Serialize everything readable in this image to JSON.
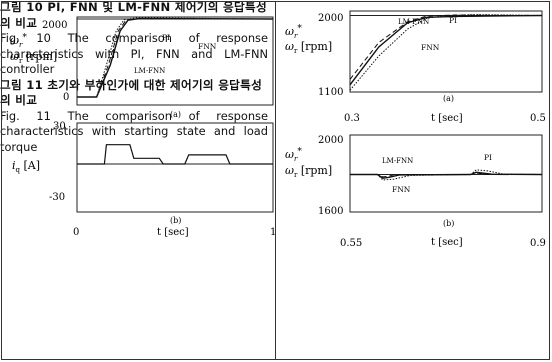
{
  "figure10": {
    "chart_data": [
      {
        "type": "line",
        "panel": "(a)",
        "ylabel_star": "ω_r*",
        "ylabel": "ω_r [rpm]",
        "yticks": [
          "2000",
          "0"
        ],
        "ylim": [
          0,
          2000
        ],
        "xlim": [
          0,
          1
        ],
        "series": [
          {
            "name": "PI",
            "points": [
              [
                0,
                0
              ],
              [
                0.1,
                0
              ],
              [
                0.15,
                800
              ],
              [
                0.2,
                1650
              ],
              [
                0.24,
                1930
              ],
              [
                0.3,
                1980
              ],
              [
                1,
                1950
              ]
            ]
          },
          {
            "name": "FNN",
            "points": [
              [
                0,
                0
              ],
              [
                0.1,
                0
              ],
              [
                0.17,
                800
              ],
              [
                0.22,
                1650
              ],
              [
                0.26,
                1920
              ],
              [
                0.32,
                1960
              ],
              [
                1,
                1950
              ]
            ]
          },
          {
            "name": "LM-FNN",
            "points": [
              [
                0,
                0
              ],
              [
                0.1,
                0
              ],
              [
                0.16,
                800
              ],
              [
                0.21,
                1650
              ],
              [
                0.25,
                1920
              ],
              [
                0.31,
                1960
              ],
              [
                1,
                1950
              ]
            ]
          }
        ],
        "labels": {
          "pi": "PI",
          "fnn": "FNN",
          "lmfnn": "LM-FNN"
        },
        "tag": "(a)"
      },
      {
        "type": "line",
        "panel": "(b)",
        "ylabel": "i_q [A]",
        "yticks": [
          "30",
          "-30"
        ],
        "ylim": [
          -30,
          30
        ],
        "xlim": [
          0,
          1
        ],
        "xlabel": "t [sec]",
        "xticks": [
          "0",
          "1"
        ],
        "series": [
          {
            "name": "current",
            "points": [
              [
                0,
                0
              ],
              [
                0.14,
                0
              ],
              [
                0.15,
                17
              ],
              [
                0.27,
                17
              ],
              [
                0.29,
                5
              ],
              [
                0.42,
                5
              ],
              [
                0.44,
                0
              ],
              [
                0.55,
                0
              ],
              [
                0.57,
                8
              ],
              [
                0.76,
                8
              ],
              [
                0.78,
                0
              ],
              [
                1,
                0
              ]
            ]
          }
        ],
        "tag": "(b)"
      }
    ],
    "caption_ko": "그림 10 PI, FNN 및 LM-FNN 제어기의 응답특성의 비교",
    "caption_en": "Fig. 10 The comparison of response characteristics with PI, FNN and LM-FNN controller"
  },
  "figure11": {
    "chart_data": [
      {
        "type": "line",
        "panel": "(a)",
        "ylabel_star": "ω_r*",
        "ylabel": "ω_r [rpm]",
        "yticks": [
          "2000",
          "1100"
        ],
        "ylim": [
          1100,
          2000
        ],
        "xlim": [
          0.3,
          0.5
        ],
        "xlabel": "t [sec]",
        "xticks": [
          "0.3",
          "0.5"
        ],
        "series": [
          {
            "name": "PI",
            "points": [
              [
                0.3,
                1120
              ],
              [
                0.33,
                1500
              ],
              [
                0.36,
                1800
              ],
              [
                0.38,
                1920
              ],
              [
                0.4,
                1950
              ],
              [
                0.43,
                1960
              ],
              [
                0.5,
                1950
              ]
            ]
          },
          {
            "name": "FNN",
            "points": [
              [
                0.3,
                1180
              ],
              [
                0.33,
                1600
              ],
              [
                0.36,
                1870
              ],
              [
                0.38,
                1930
              ],
              [
                0.41,
                1940
              ],
              [
                0.5,
                1950
              ]
            ]
          },
          {
            "name": "LM-FNN",
            "points": [
              [
                0.3,
                1240
              ],
              [
                0.33,
                1650
              ],
              [
                0.36,
                1880
              ],
              [
                0.38,
                1945
              ],
              [
                0.41,
                1955
              ],
              [
                0.5,
                1950
              ]
            ]
          }
        ],
        "labels": {
          "pi": "PI",
          "fnn": "FNN",
          "lmfnn": "LM-FNN"
        },
        "tag": "(a)"
      },
      {
        "type": "line",
        "panel": "(b)",
        "ylabel_star": "ω_r*",
        "ylabel": "ω_r [rpm]",
        "yticks": [
          "2000",
          "1600"
        ],
        "ylim": [
          1600,
          2000
        ],
        "xlim": [
          0.55,
          0.9
        ],
        "xlabel": "t [sec]",
        "xticks": [
          "0.55",
          "0.9"
        ],
        "series": [
          {
            "name": "PI",
            "points": [
              [
                0.55,
                1800
              ],
              [
                0.6,
                1800
              ],
              [
                0.61,
                1770
              ],
              [
                0.63,
                1775
              ],
              [
                0.66,
                1795
              ],
              [
                0.77,
                1800
              ],
              [
                0.78,
                1825
              ],
              [
                0.8,
                1820
              ],
              [
                0.83,
                1802
              ],
              [
                0.9,
                1800
              ]
            ]
          },
          {
            "name": "FNN",
            "points": [
              [
                0.55,
                1800
              ],
              [
                0.6,
                1800
              ],
              [
                0.61,
                1780
              ],
              [
                0.62,
                1784
              ],
              [
                0.64,
                1798
              ],
              [
                0.77,
                1800
              ],
              [
                0.78,
                1812
              ],
              [
                0.79,
                1808
              ],
              [
                0.81,
                1801
              ],
              [
                0.9,
                1800
              ]
            ]
          },
          {
            "name": "LM-FNN",
            "points": [
              [
                0.55,
                1800
              ],
              [
                0.6,
                1800
              ],
              [
                0.61,
                1787
              ],
              [
                0.62,
                1790
              ],
              [
                0.63,
                1799
              ],
              [
                0.77,
                1800
              ],
              [
                0.78,
                1808
              ],
              [
                0.79,
                1804
              ],
              [
                0.8,
                1800
              ],
              [
                0.9,
                1800
              ]
            ]
          }
        ],
        "labels": {
          "pi": "PI",
          "fnn": "FNN",
          "lmfnn": "LM-FNN"
        },
        "tag": "(b)"
      }
    ],
    "caption_ko": "그림 11 초기와 부하인가에 대한 제어기의 응답특성의 비교",
    "caption_en": "Fig. 11 The comparison of response characteristics with starting state and load torque"
  }
}
